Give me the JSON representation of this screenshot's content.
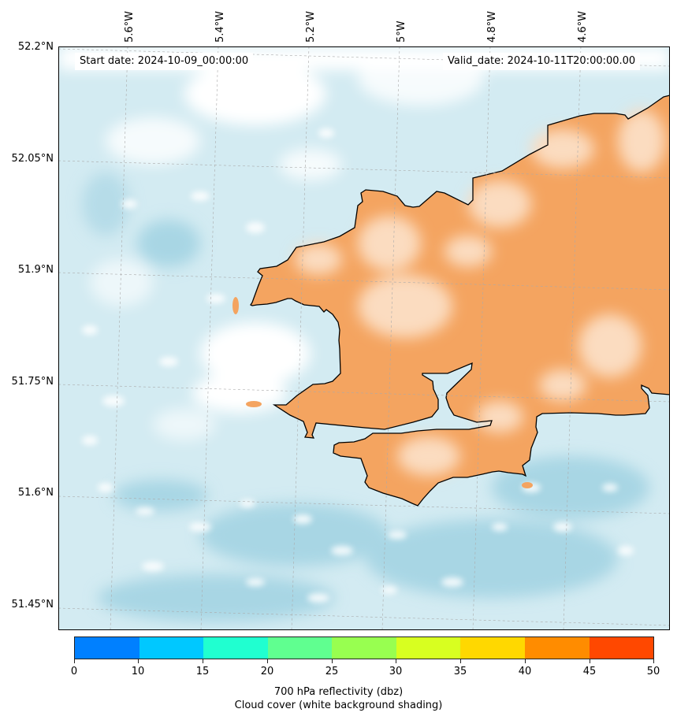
{
  "map": {
    "start_date": "Start date: 2024-10-09_00:00:00",
    "valid_date": "Valid_date: 2024-10-11T20:00:00.00",
    "lat_labels": [
      "52.2°N",
      "52.05°N",
      "51.9°N",
      "51.75°N",
      "51.6°N",
      "51.45°N"
    ],
    "lon_labels": [
      "5.6°W",
      "5.4°W",
      "5.2°W",
      "5°W",
      "4.8°W",
      "4.6°W"
    ],
    "colors": {
      "sea_cloud": "#add8e6",
      "land_reflectivity": "#f4a460",
      "coastline": "#000000",
      "grid": "#aaaaaa"
    }
  },
  "colorbar": {
    "ticks": [
      "0",
      "10",
      "15",
      "20",
      "25",
      "30",
      "35",
      "40",
      "45",
      "50"
    ],
    "colors": [
      "#0080ff",
      "#00c8ff",
      "#20ffd0",
      "#60ff90",
      "#98ff50",
      "#d8ff20",
      "#ffd800",
      "#ff8c00",
      "#ff4800"
    ],
    "label_line1": "700 hPa reflectivity (dbz)",
    "label_line2": "Cloud cover (white background shading)"
  }
}
